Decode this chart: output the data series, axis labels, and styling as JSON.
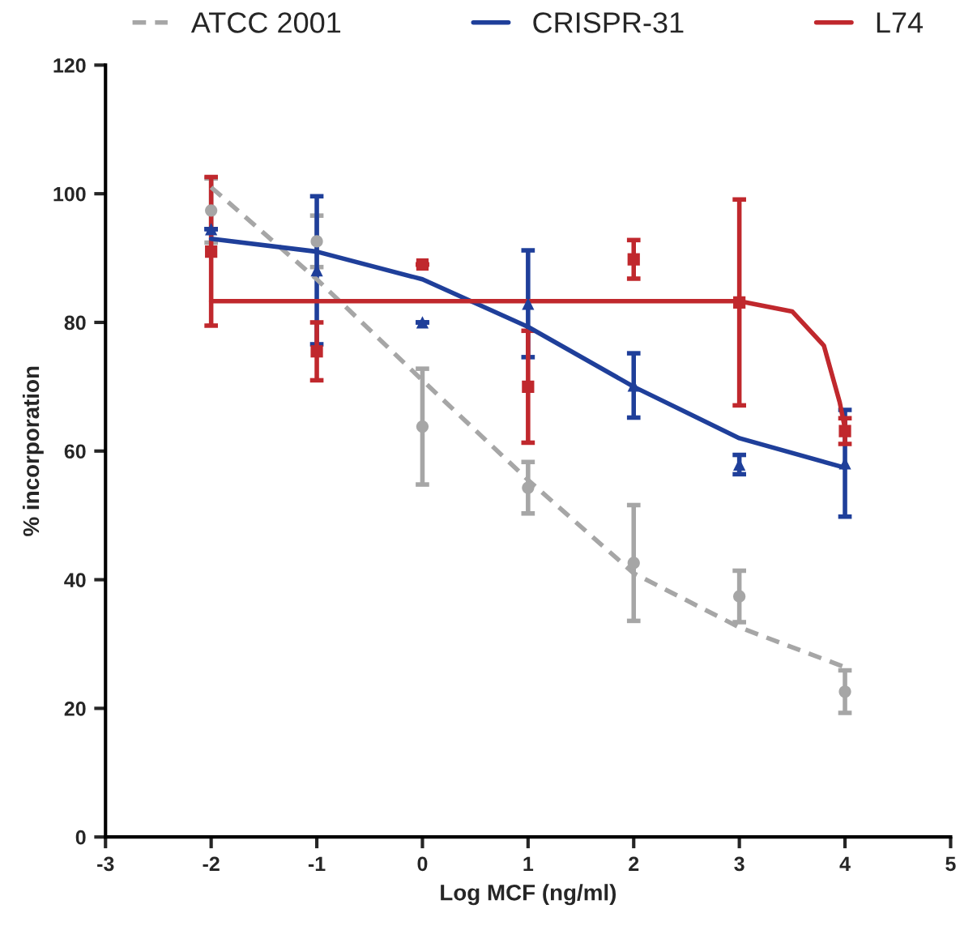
{
  "chart_data": {
    "type": "scatter",
    "xlabel": "Log MCF (ng/ml)",
    "ylabel": "% incorporation",
    "xlim": [
      -3,
      5
    ],
    "xticks": [
      -3,
      -2,
      -1,
      0,
      1,
      2,
      3,
      4,
      5
    ],
    "ylim": [
      0,
      120
    ],
    "yticks": [
      0,
      20,
      40,
      60,
      80,
      100,
      120
    ],
    "grid": false,
    "legend": "top",
    "series": [
      {
        "color": "#a6a6a6",
        "marker": "circle",
        "x": [
          -2,
          -1,
          0,
          1,
          2,
          3,
          4
        ],
        "values": [
          97.4,
          92.6,
          63.8,
          54.3,
          42.6,
          37.4,
          22.6
        ],
        "errors": [
          5,
          4,
          9,
          4,
          9,
          4,
          3.3
        ]
      },
      {
        "color": "#1f3f9a",
        "marker": "triangle",
        "x": [
          -2,
          -1,
          0,
          1,
          2,
          3,
          4
        ],
        "values": [
          94.5,
          88.1,
          80,
          82.9,
          70.2,
          57.9,
          58.1
        ],
        "errors": [
          null,
          11.5,
          null,
          8.3,
          5,
          1.5,
          8.3
        ]
      },
      {
        "color": "#c0282d",
        "marker": "square",
        "x": [
          -2,
          -1,
          0,
          1,
          2,
          3,
          4
        ],
        "values": [
          91,
          75.5,
          89,
          70,
          89.8,
          83.1,
          63.1
        ],
        "errors": [
          [
            79.5,
            102.6
          ],
          4.5,
          null,
          8.7,
          3,
          16,
          2
        ]
      },
      {
        "type": "line",
        "name": "ATCC 2001",
        "color": "#a6a6a6",
        "line_style": "dashed",
        "x": [
          -2,
          -1,
          0,
          1,
          2,
          3,
          4
        ],
        "values": [
          101,
          86.7,
          71,
          55.5,
          41,
          32.6,
          26.4
        ]
      },
      {
        "type": "line",
        "name": "CRISPR-31",
        "color": "#1f3f9a",
        "line_style": "solid",
        "x": [
          -2,
          -1,
          0,
          1,
          2,
          3,
          4
        ],
        "values": [
          93,
          91,
          86.7,
          79.3,
          70,
          62,
          57.4
        ]
      },
      {
        "type": "line",
        "name": "L74",
        "color": "#c0282d",
        "line_style": "solid",
        "x": [
          -2,
          3,
          3.5,
          3.8,
          3.95,
          4
        ],
        "values": [
          83.3,
          83.3,
          81.7,
          76.4,
          67.6,
          63.5
        ]
      }
    ]
  }
}
